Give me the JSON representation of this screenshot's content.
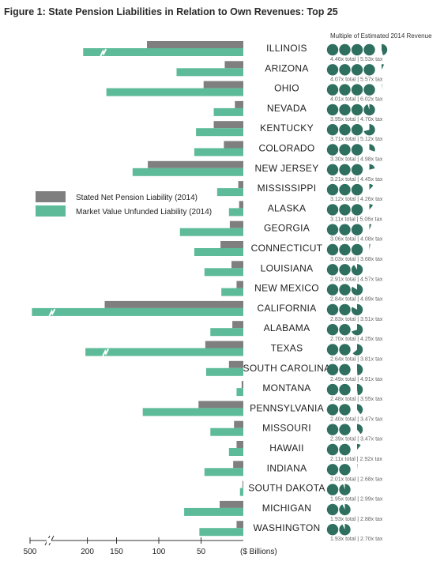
{
  "chart_data": {
    "type": "bar",
    "title": "Figure 1: State Pension Liabilities in Relation to Own Revenues: Top 25",
    "xlabel": "($ Billions)",
    "x_ticks": [
      "500",
      "200",
      "150",
      "100",
      "50"
    ],
    "x_tick_values": [
      500,
      200,
      150,
      100,
      50
    ],
    "axis_break": true,
    "multiple_header": "Multiple of Estimated 2014 Revenue",
    "colors": {
      "stated": "#7f7f7f",
      "market": "#5dbb9a",
      "pie": "#2e6f60"
    },
    "legend": [
      {
        "name": "Stated Net Pension Liability (2014)",
        "color": "#7f7f7f"
      },
      {
        "name": "Market Value Unfunded Liability (2014)",
        "color": "#5dbb9a"
      }
    ],
    "categories": [
      "ILLINOIS",
      "ARIZONA",
      "OHIO",
      "NEVADA",
      "KENTUCKY",
      "COLORADO",
      "NEW JERSEY",
      "MISSISSIPPI",
      "ALASKA",
      "GEORGIA",
      "CONNECTICUT",
      "LOUISIANA",
      "NEW MEXICO",
      "CALIFORNIA",
      "ALABAMA",
      "TEXAS",
      "SOUTH CAROLINA",
      "MONTANA",
      "PENNSYLVANIA",
      "MISSOURI",
      "HAWAII",
      "INDIANA",
      "SOUTH DAKOTA",
      "MICHIGAN",
      "WASHINGTON"
    ],
    "series": [
      {
        "name": "Stated Net Pension Liability (2014)",
        "values": [
          114,
          22,
          47,
          10,
          35,
          23,
          113,
          6,
          5,
          16,
          27,
          14,
          8,
          164,
          13,
          45,
          17,
          2,
          53,
          11,
          8,
          12,
          1,
          28,
          8
        ]
      },
      {
        "name": "Market Value Unfunded Liability (2014)",
        "values": [
          222,
          79,
          162,
          35,
          56,
          58,
          131,
          31,
          17,
          75,
          58,
          46,
          26,
          490,
          39,
          210,
          44,
          8,
          119,
          39,
          17,
          46,
          4,
          70,
          52
        ]
      }
    ],
    "multiples": [
      {
        "total": 4.46,
        "label": "4.46x total | 5.53x tax"
      },
      {
        "total": 4.07,
        "label": "4.07x total | 5.57x tax"
      },
      {
        "total": 4.01,
        "label": "4.01x total | 6.02x tax"
      },
      {
        "total": 3.95,
        "label": "3.95x total | 4.70x tax"
      },
      {
        "total": 3.71,
        "label": "3.71x total | 5.12x tax"
      },
      {
        "total": 3.3,
        "label": "3.30x total | 4.98x tax"
      },
      {
        "total": 3.21,
        "label": "3.21x total | 4.45x tax"
      },
      {
        "total": 3.12,
        "label": "3.12x total | 4.26x tax"
      },
      {
        "total": 3.11,
        "label": "3.11x total | 5.06x tax"
      },
      {
        "total": 3.06,
        "label": "3.06x total | 4.08x tax"
      },
      {
        "total": 3.03,
        "label": "3.03x total | 3.68x tax"
      },
      {
        "total": 2.91,
        "label": "2.91x total | 4.57x tax"
      },
      {
        "total": 2.84,
        "label": "2.84x total | 4.89x tax"
      },
      {
        "total": 2.83,
        "label": "2.83x total | 3.51x tax"
      },
      {
        "total": 2.7,
        "label": "2.70x total | 4.25x tax"
      },
      {
        "total": 2.64,
        "label": "2.64x total | 3.81x tax"
      },
      {
        "total": 2.49,
        "label": "2.49x total | 4.91x tax"
      },
      {
        "total": 2.48,
        "label": "2.48x total | 3.55x tax"
      },
      {
        "total": 2.4,
        "label": "2.40x total | 3.47x tax"
      },
      {
        "total": 2.39,
        "label": "2.39x total | 3.47x tax"
      },
      {
        "total": 2.11,
        "label": "2.11x total | 2.92x tax"
      },
      {
        "total": 2.01,
        "label": "2.01x total | 2.68x tax"
      },
      {
        "total": 1.95,
        "label": "1.95x total | 2.99x tax"
      },
      {
        "total": 1.93,
        "label": "1.93x total | 2.88x tax"
      },
      {
        "total": 1.93,
        "label": "1.93x total | 2.70x tax"
      }
    ]
  }
}
